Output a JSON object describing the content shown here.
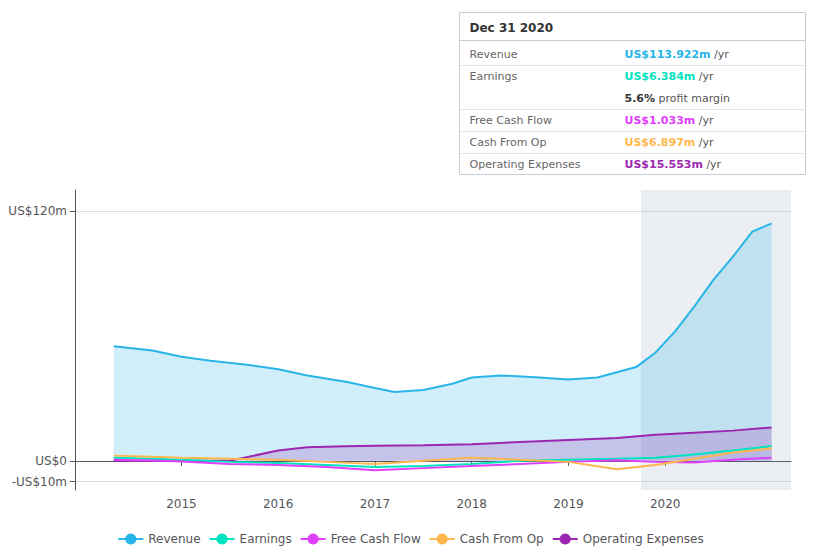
{
  "chart_data": {
    "type": "line",
    "xlim": [
      2013.9,
      2021.3
    ],
    "xticks": [
      2015,
      2016,
      2017,
      2018,
      2019,
      2020
    ],
    "ylim": [
      -14,
      130
    ],
    "yticks": [
      {
        "value": 120,
        "label": "US$120m"
      },
      {
        "value": 0,
        "label": "US$0"
      },
      {
        "value": -10,
        "label": "-US$10m"
      }
    ],
    "grid": true,
    "legend": "bottom",
    "highlight_x": [
      2019.75,
      2021.3
    ],
    "series": [
      {
        "name": "Revenue",
        "type": "area",
        "color": "#29b5e8",
        "x": [
          2014.3,
          2014.7,
          2015.0,
          2015.3,
          2015.7,
          2016.0,
          2016.3,
          2016.7,
          2017.0,
          2017.2,
          2017.5,
          2017.8,
          2018.0,
          2018.3,
          2018.7,
          2019.0,
          2019.3,
          2019.7,
          2019.9,
          2020.1,
          2020.3,
          2020.5,
          2020.7,
          2020.9,
          2021.1
        ],
        "values": [
          55,
          53,
          50,
          48,
          46,
          44,
          41,
          38,
          35,
          33,
          34,
          37,
          40,
          41,
          40,
          39,
          40,
          45,
          52,
          62,
          74,
          87,
          98,
          110,
          114
        ]
      },
      {
        "name": "Earnings",
        "type": "line",
        "color": "#00e5c0",
        "x": [
          2014.3,
          2014.7,
          2015.0,
          2015.5,
          2016.0,
          2016.5,
          2017.0,
          2017.5,
          2018.0,
          2018.5,
          2019.0,
          2019.5,
          2019.9,
          2020.3,
          2020.7,
          2021.1
        ],
        "values": [
          1.5,
          1.0,
          0.5,
          -0.5,
          -1.0,
          -2.0,
          -3.0,
          -2.5,
          -1.5,
          0.0,
          0.5,
          1.0,
          1.5,
          3.0,
          5.0,
          7.0
        ]
      },
      {
        "name": "Free Cash Flow",
        "type": "line",
        "color": "#e040fb",
        "x": [
          2014.3,
          2014.7,
          2015.0,
          2015.5,
          2016.0,
          2016.5,
          2017.0,
          2017.5,
          2018.0,
          2018.5,
          2019.0,
          2019.5,
          2019.9,
          2020.3,
          2020.7,
          2021.1
        ],
        "values": [
          0.5,
          0.2,
          -0.3,
          -1.5,
          -2.0,
          -3.0,
          -4.5,
          -3.5,
          -2.5,
          -1.5,
          -0.5,
          0.3,
          -0.5,
          -0.8,
          0.5,
          1.5
        ]
      },
      {
        "name": "Cash From Op",
        "type": "line",
        "color": "#ffb74d",
        "x": [
          2014.3,
          2014.7,
          2015.0,
          2015.5,
          2016.0,
          2016.5,
          2017.0,
          2017.5,
          2018.0,
          2018.5,
          2019.0,
          2019.5,
          2019.9,
          2020.3,
          2020.7,
          2021.1
        ],
        "values": [
          2.5,
          2.0,
          1.5,
          1.0,
          0.5,
          -0.5,
          -1.5,
          0.0,
          1.5,
          0.5,
          -0.5,
          -4.0,
          -2.0,
          1.0,
          4.0,
          6.0
        ]
      },
      {
        "name": "Operating Expenses",
        "type": "area",
        "color": "#9c27b0",
        "x": [
          2014.3,
          2014.7,
          2015.0,
          2015.5,
          2016.0,
          2016.3,
          2016.7,
          2017.0,
          2017.5,
          2018.0,
          2018.5,
          2019.0,
          2019.5,
          2019.9,
          2020.3,
          2020.7,
          2021.1
        ],
        "values": [
          0.0,
          0.0,
          0.0,
          0.0,
          5.0,
          6.5,
          7.0,
          7.2,
          7.5,
          8.0,
          9.0,
          10.0,
          11.0,
          12.5,
          13.5,
          14.5,
          16.0
        ]
      }
    ],
    "annotations": {
      "title": "Dec 31 2020",
      "rows": [
        {
          "label": "Revenue",
          "value": "US$113.922m",
          "unit": "/yr",
          "color": "#29b5e8"
        },
        {
          "label": "Earnings",
          "value": "US$6.384m",
          "unit": "/yr",
          "color": "#00e5c0"
        },
        {
          "value": "5.6%",
          "unit": "profit margin"
        },
        {
          "label": "Free Cash Flow",
          "value": "US$1.033m",
          "unit": "/yr",
          "color": "#e040fb"
        },
        {
          "label": "Cash From Op",
          "value": "US$6.897m",
          "unit": "/yr",
          "color": "#ffb74d"
        },
        {
          "label": "Operating Expenses",
          "value": "US$15.553m",
          "unit": "/yr",
          "color": "#9c27b0"
        }
      ]
    }
  }
}
